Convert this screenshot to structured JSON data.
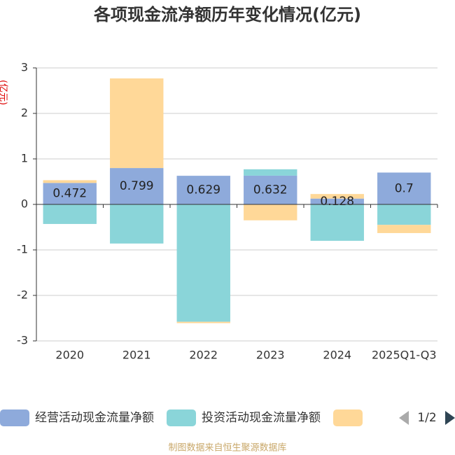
{
  "chart_data": {
    "type": "stacked-bar",
    "title": "各项现金流净额历年变化情况(亿元)",
    "y_label": "(亿元)",
    "categories": [
      "2020",
      "2021",
      "2022",
      "2023",
      "2024",
      "2025Q1-Q3"
    ],
    "series": [
      {
        "name": "经营活动现金流量净额",
        "color": "#8eaadb",
        "values": [
          0.472,
          0.799,
          0.629,
          0.632,
          0.128,
          0.7
        ],
        "show_labels": true
      },
      {
        "name": "投资活动现金流量净额",
        "color": "#8ad5d9",
        "values": [
          -0.43,
          -0.86,
          -2.58,
          0.14,
          -0.8,
          -0.45
        ]
      },
      {
        "color": "#ffd898",
        "values": [
          0.06,
          1.97,
          -0.03,
          -0.35,
          0.1,
          -0.18
        ]
      }
    ],
    "ylim": [
      -3,
      3
    ],
    "yticks": [
      -3,
      -2,
      -1,
      0,
      1,
      2,
      3
    ],
    "grid": true,
    "legend_page": "1/2",
    "source": "制图数据来自恒生聚源数据库"
  }
}
